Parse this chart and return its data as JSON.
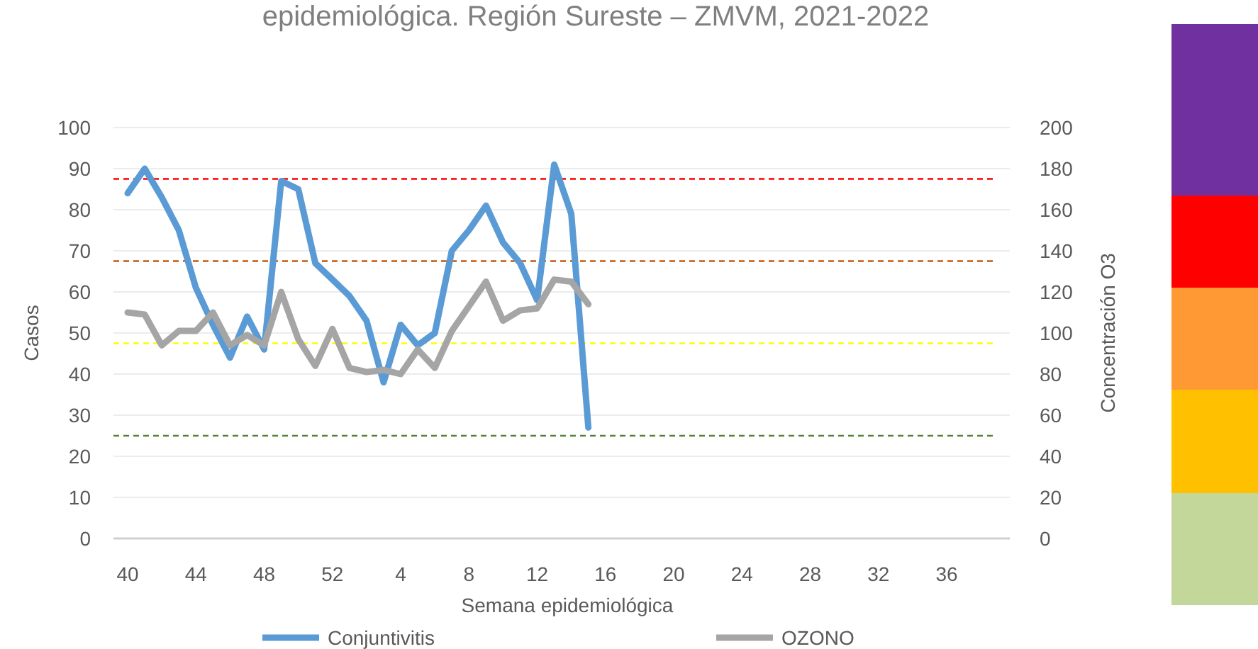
{
  "chart_data": {
    "type": "line",
    "title": "epidemiológica. Región Sureste – ZMVM, 2021-2022",
    "xlabel": "Semana epidemiológica",
    "ylabel": "Casos",
    "y2label": "Concentración O3",
    "categories": [
      "40",
      null,
      null,
      null,
      "44",
      null,
      null,
      null,
      "48",
      null,
      null,
      null,
      "52",
      null,
      null,
      null,
      "4",
      null,
      null,
      null,
      "8",
      null,
      null,
      null,
      "12",
      null,
      null,
      null,
      "16",
      null,
      null,
      null,
      "20",
      null,
      null,
      null,
      "24",
      null,
      null,
      null,
      "28",
      null,
      null,
      null,
      "32",
      null,
      null,
      null,
      "36",
      null,
      null,
      null
    ],
    "series": [
      {
        "name": "Conjuntivitis",
        "color": "#5b9bd5",
        "values": [
          84,
          90,
          83,
          75,
          61,
          52,
          44,
          54,
          46,
          87,
          85,
          67,
          63,
          59,
          53,
          38,
          52,
          47,
          50,
          70,
          75,
          81,
          72,
          67,
          58,
          91,
          79,
          27,
          null,
          null,
          null,
          null,
          null,
          null,
          null,
          null,
          null,
          null,
          null,
          null,
          null,
          null,
          null,
          null,
          null,
          null,
          null,
          null,
          null,
          null,
          null,
          null
        ]
      },
      {
        "name": "OZONO",
        "color": "#a5a5a5",
        "axis": "y2",
        "values": [
          110,
          109,
          94,
          101,
          101,
          110,
          94,
          99,
          94,
          120,
          97,
          84,
          102,
          83,
          81,
          82,
          80,
          92,
          83,
          101,
          113,
          125,
          106,
          111,
          112,
          126,
          125,
          114,
          null,
          null,
          null,
          null,
          null,
          null,
          null,
          null,
          null,
          null,
          null,
          null,
          null,
          null,
          null,
          null,
          null,
          null,
          null,
          null,
          null,
          null,
          null,
          null
        ]
      }
    ],
    "ylim": [
      0,
      100
    ],
    "yticks": [
      0,
      10,
      20,
      30,
      40,
      50,
      60,
      70,
      80,
      90,
      100
    ],
    "y2lim": [
      0,
      200
    ],
    "y2ticks": [
      0,
      20,
      40,
      60,
      80,
      100,
      120,
      140,
      160,
      180,
      200
    ],
    "ref_lines": [
      {
        "axis": "y2",
        "value": 175,
        "color": "#ff0000",
        "line_style": "dashed"
      },
      {
        "axis": "y2",
        "value": 135,
        "color": "#c55a11",
        "line_style": "dashed"
      },
      {
        "axis": "y2",
        "value": 95,
        "color": "#ffff00",
        "line_style": "dashed"
      },
      {
        "axis": "y2",
        "value": 50,
        "color": "#548235",
        "line_style": "dashed"
      }
    ],
    "grid": "y",
    "legend": "bottom",
    "line_style": "solid"
  }
}
